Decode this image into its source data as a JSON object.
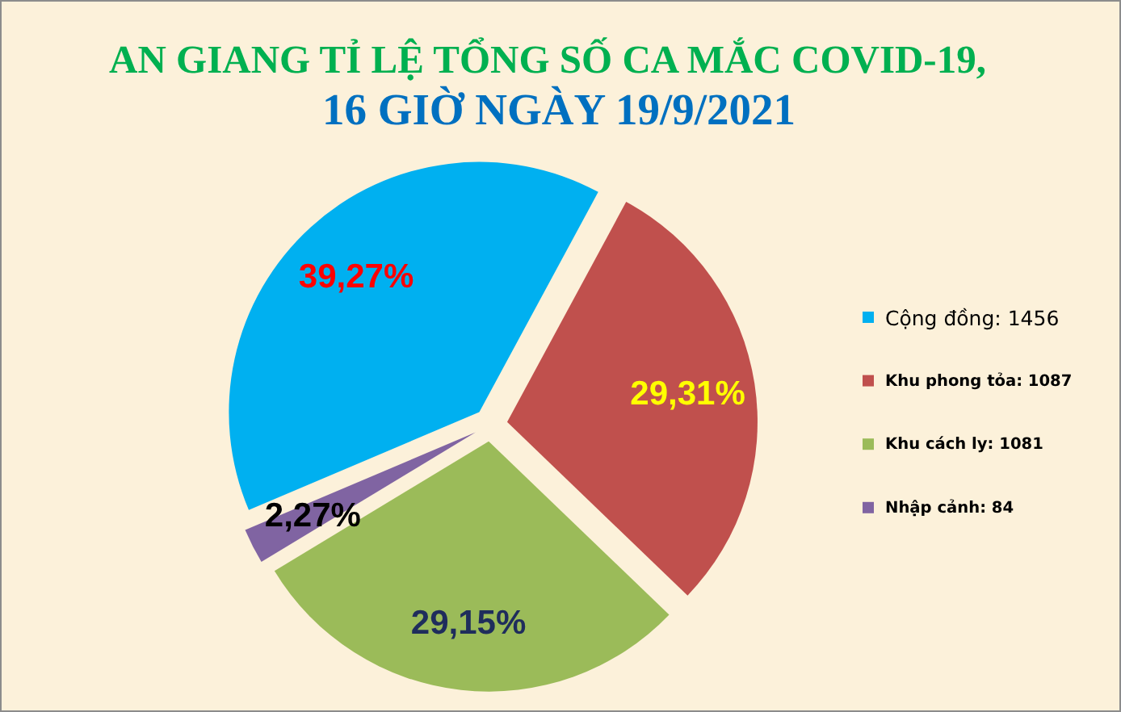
{
  "chart_data": {
    "type": "pie",
    "title": "AN GIANG TỈ LỆ TỔNG SỐ CA MẮC COVID-19,",
    "subtitle": "16 GIỜ NGÀY 19/9/2021",
    "categories": [
      "Cộng đồng: 1456",
      "Khu phong tỏa: 1087",
      "Khu cách ly: 1081",
      "Nhập cảnh: 84"
    ],
    "values": [
      39.27,
      29.31,
      29.15,
      2.27
    ],
    "colors": [
      "#00b0f0",
      "#c0504d",
      "#9bbb59",
      "#8064a2"
    ],
    "value_labels": [
      "39,27%",
      "29,31%",
      "29,15%",
      "2,27%"
    ],
    "legend": "right"
  }
}
